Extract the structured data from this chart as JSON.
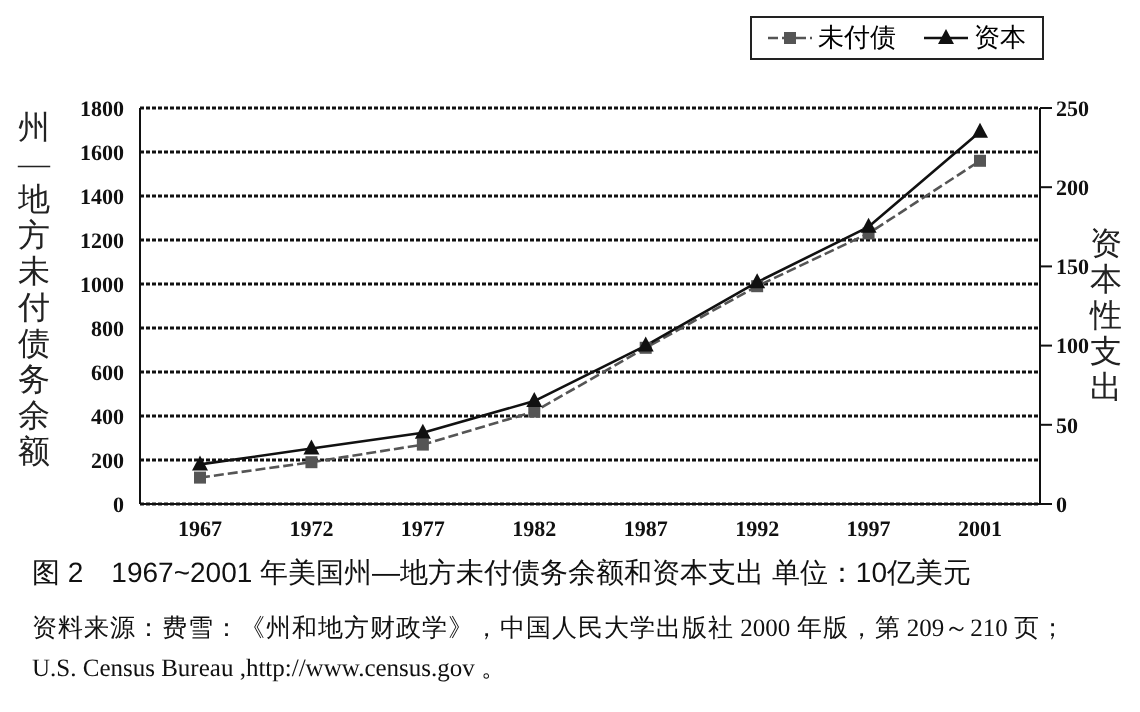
{
  "chart_data": {
    "type": "line",
    "title": "图 2　1967~2001 年美国州—地方未付债务余额和资本支出  单位：10亿美元",
    "ylabel": "州—地方未付债务余额",
    "y2label": "资本性支出",
    "categories": [
      "1967",
      "1972",
      "1977",
      "1982",
      "1987",
      "1992",
      "1997",
      "2001"
    ],
    "series": [
      {
        "name": "未付债",
        "color": "#555555",
        "marker": "square",
        "line_style": "dashed",
        "values": [
          120,
          190,
          270,
          420,
          710,
          990,
          1230,
          1560
        ]
      },
      {
        "name": "资本",
        "color": "#111111",
        "marker": "triangle",
        "line_style": "solid",
        "axis": "y2",
        "values": [
          25,
          35,
          45,
          65,
          100,
          140,
          175,
          235
        ]
      }
    ],
    "ylim": [
      0,
      1800
    ],
    "yticks": [
      0,
      200,
      400,
      600,
      800,
      1000,
      1200,
      1400,
      1600,
      1800
    ],
    "y2lim": [
      0,
      250
    ],
    "y2ticks": [
      0,
      50,
      100,
      150,
      200,
      250
    ],
    "grid": "y",
    "legend": "top right",
    "annotations": [
      "资料来源：费雪：《州和地方财政学》，中国人民大学出版社 2000 年版，第 209～210 页；",
      "U.S. Census Bureau ,http://www.census.gov 。"
    ]
  }
}
